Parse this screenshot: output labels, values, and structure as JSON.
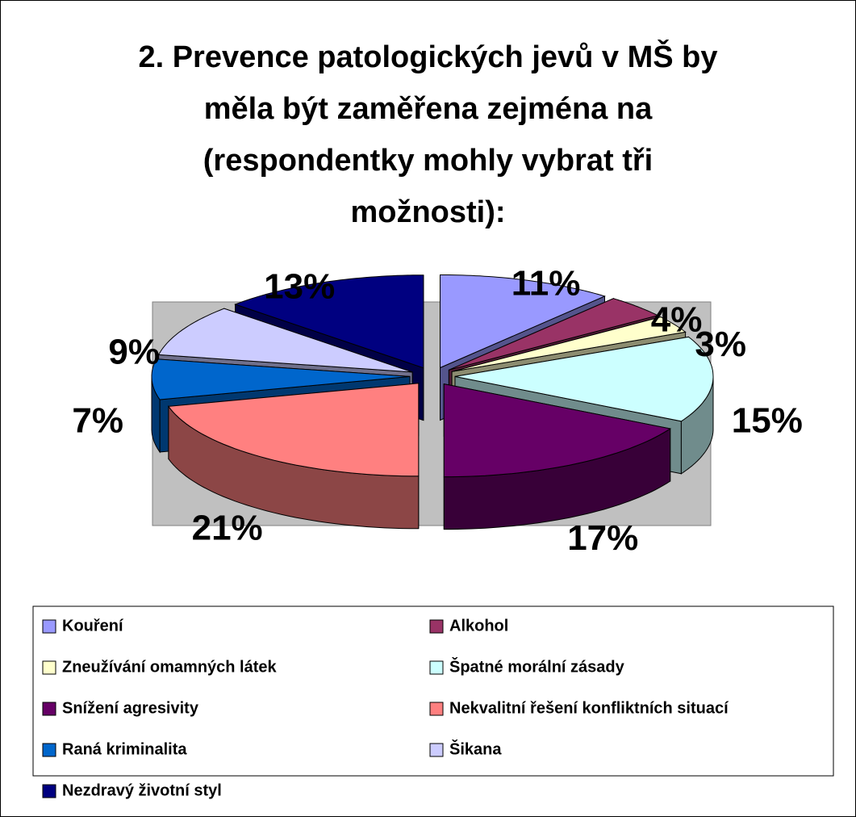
{
  "chart_data": {
    "type": "pie3d",
    "title": "2. Prevence patologických jevů v MŠ by\nměla být zaměřena zejména na\n(respondentky mohly vybrat tři\nmožnosti):",
    "categories": [
      "Kouření",
      "Alkohol",
      "Zneužívání omamných látek",
      "Špatné morální zásady",
      "Snížení agresivity",
      "Nekvalitní řešení konfliktních situací",
      "Raná kriminalita",
      "Šikana",
      "Nezdravý životní styl"
    ],
    "values": [
      11,
      4,
      3,
      15,
      17,
      21,
      7,
      9,
      13
    ],
    "value_labels": [
      "11%",
      "4%",
      "3%",
      "15%",
      "17%",
      "21%",
      "7%",
      "9%",
      "13%"
    ],
    "colors": [
      "#9999ff",
      "#993366",
      "#ffffcc",
      "#ccffff",
      "#660066",
      "#ff8080",
      "#0066cc",
      "#ccccff",
      "#000080"
    ]
  }
}
